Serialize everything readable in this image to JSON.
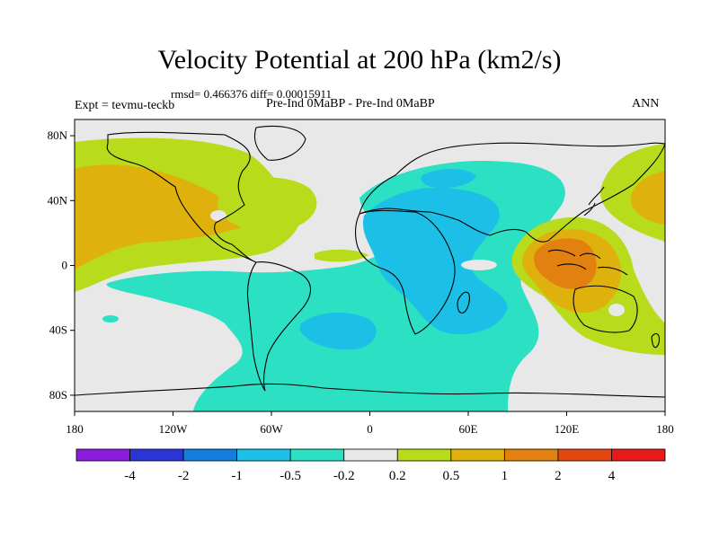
{
  "title": "Velocity Potential at 200 hPa (km2/s)",
  "stats": "rmsd= 0.466376 diff= 0.00015911",
  "experiment": "Expt = tevmu-teckb",
  "case": "Pre-Ind 0MaBP - Pre-Ind 0MaBP",
  "season": "ANN",
  "lat_labels": [
    "80N",
    "40N",
    "0",
    "40S",
    "80S"
  ],
  "lon_labels": [
    "180",
    "120W",
    "60W",
    "0",
    "60E",
    "120E",
    "180"
  ],
  "colorbar": {
    "colors": [
      "#8b1bdb",
      "#2b34d6",
      "#127ee0",
      "#1cc0e6",
      "#2ce0c4",
      "#e8e8e8",
      "#b8dc1c",
      "#dfb10d",
      "#e28010",
      "#e3470f",
      "#e8191a"
    ],
    "labels": [
      "-4",
      "-2",
      "-1",
      "-0.5",
      "-0.2",
      "0.2",
      "0.5",
      "1",
      "2",
      "4"
    ]
  }
}
